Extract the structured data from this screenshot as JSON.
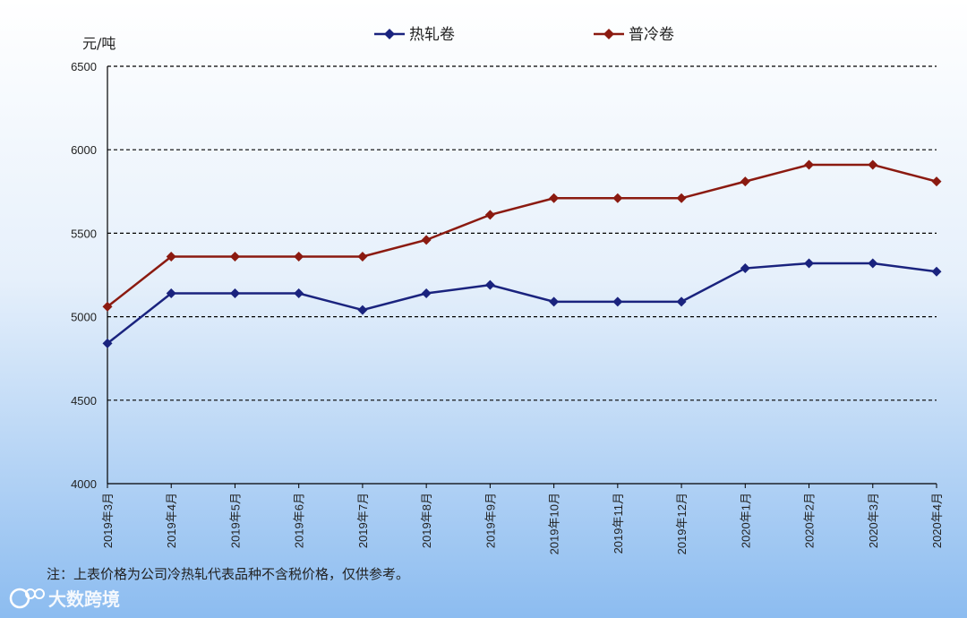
{
  "chart_data": {
    "type": "line",
    "unit": "元/吨",
    "categories": [
      "2019年3月",
      "2019年4月",
      "2019年5月",
      "2019年6月",
      "2019年7月",
      "2019年8月",
      "2019年9月",
      "2019年10月",
      "2019年11月",
      "2019年12月",
      "2020年1月",
      "2020年2月",
      "2020年3月",
      "2020年4月"
    ],
    "series": [
      {
        "name": "热轧卷",
        "color": "#1a237e",
        "marker": "diamond",
        "values": [
          4840,
          5140,
          5140,
          5140,
          5040,
          5140,
          5190,
          5090,
          5090,
          5090,
          5290,
          5320,
          5320,
          5270
        ]
      },
      {
        "name": "普冷卷",
        "color": "#8b1a10",
        "marker": "diamond",
        "values": [
          5060,
          5360,
          5360,
          5360,
          5360,
          5460,
          5610,
          5710,
          5710,
          5710,
          5810,
          5910,
          5910,
          5810
        ]
      }
    ],
    "ylim": [
      4000,
      6500
    ],
    "yticks": [
      "4000",
      "4500",
      "5000",
      "5500",
      "6000",
      "6500"
    ],
    "grid": "dashed horizontal",
    "legend_position": "top"
  },
  "note": "注：上表价格为公司冷热轧代表品种不含税价格，仅供参考。",
  "watermark": "大数跨境",
  "colors": {
    "bg_top": "#ffffff",
    "bg_bottom": "#8cbcf0"
  }
}
